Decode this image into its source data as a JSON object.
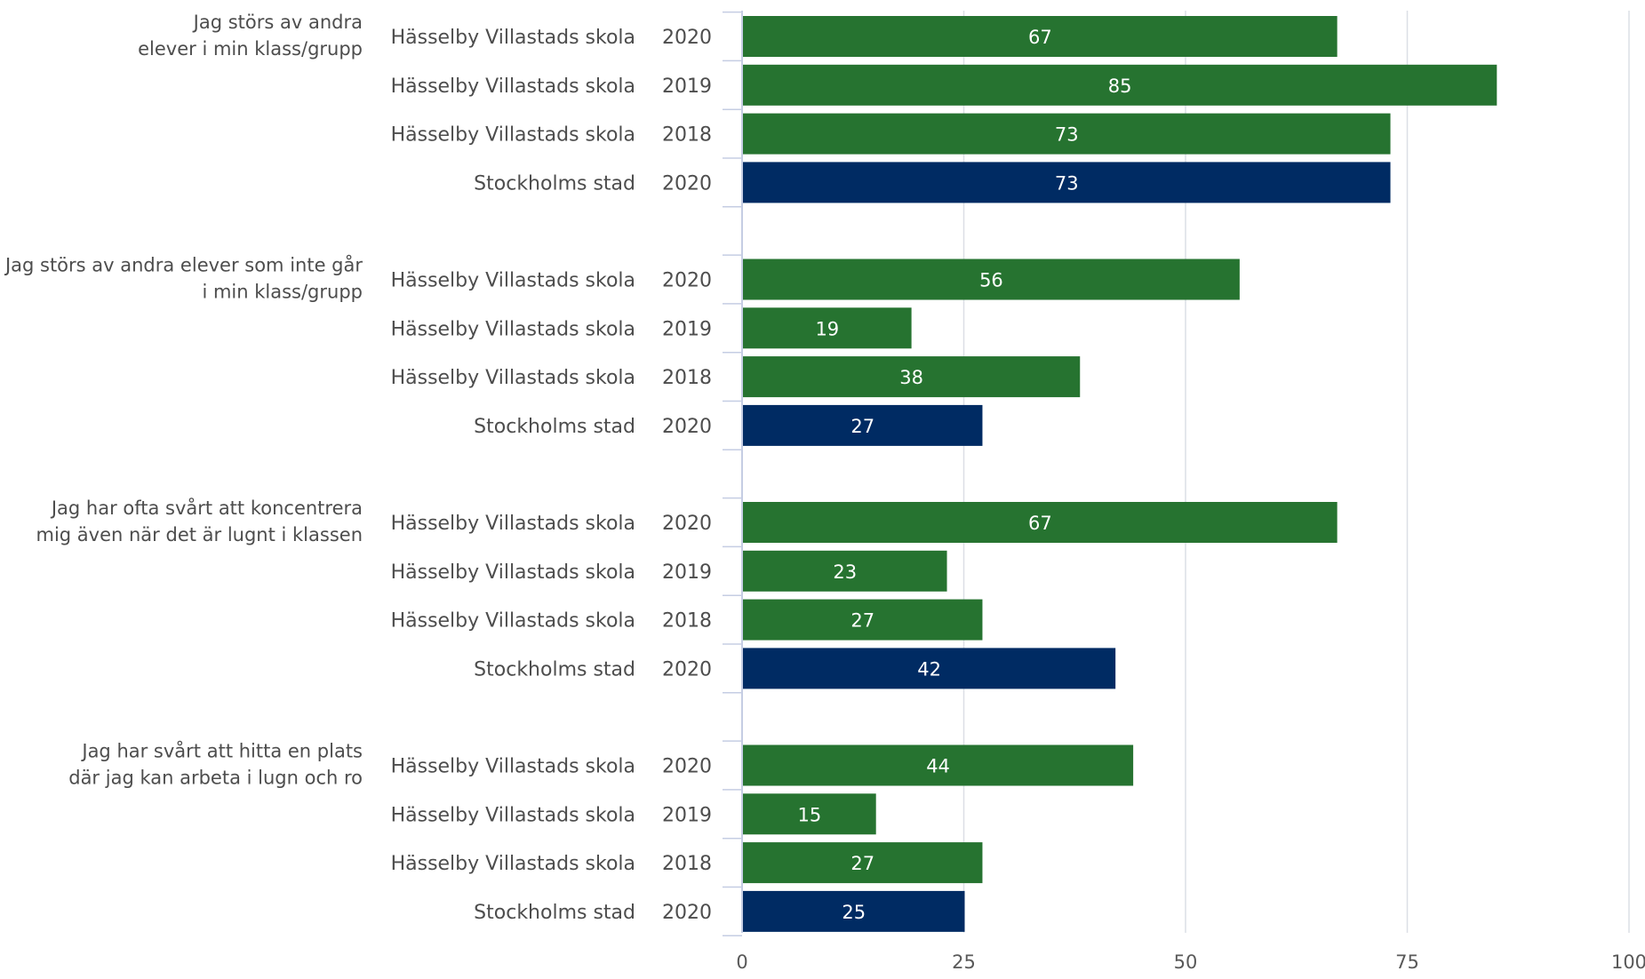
{
  "chart_data": {
    "type": "bar",
    "orientation": "horizontal",
    "xlim": [
      0,
      100
    ],
    "ticks": [
      "0",
      "25",
      "50",
      "75",
      "100"
    ],
    "tick_values": [
      0,
      25,
      50,
      75,
      100
    ],
    "grid": true,
    "colors": {
      "school": "#267330",
      "city": "#002b63",
      "grid": "#dcdfe6",
      "axis": "#c5cde3",
      "text": "#4d4d4d",
      "bar_text": "#ffffff"
    },
    "groups": [
      {
        "label_lines": [
          "Jag störs av andra",
          "elever i min klass/grupp"
        ],
        "rows": [
          {
            "name": "Hässelby Villastads skola",
            "year": "2020",
            "value": 67,
            "series": "school"
          },
          {
            "name": "Hässelby Villastads skola",
            "year": "2019",
            "value": 85,
            "series": "school"
          },
          {
            "name": "Hässelby Villastads skola",
            "year": "2018",
            "value": 73,
            "series": "school"
          },
          {
            "name": "Stockholms stad",
            "year": "2020",
            "value": 73,
            "series": "city"
          }
        ]
      },
      {
        "label_lines": [
          "Jag störs av andra elever som inte går",
          "i min klass/grupp"
        ],
        "rows": [
          {
            "name": "Hässelby Villastads skola",
            "year": "2020",
            "value": 56,
            "series": "school"
          },
          {
            "name": "Hässelby Villastads skola",
            "year": "2019",
            "value": 19,
            "series": "school"
          },
          {
            "name": "Hässelby Villastads skola",
            "year": "2018",
            "value": 38,
            "series": "school"
          },
          {
            "name": "Stockholms stad",
            "year": "2020",
            "value": 27,
            "series": "city"
          }
        ]
      },
      {
        "label_lines": [
          "Jag har ofta svårt att koncentrera",
          "mig även när det är lugnt i klassen"
        ],
        "rows": [
          {
            "name": "Hässelby Villastads skola",
            "year": "2020",
            "value": 67,
            "series": "school"
          },
          {
            "name": "Hässelby Villastads skola",
            "year": "2019",
            "value": 23,
            "series": "school"
          },
          {
            "name": "Hässelby Villastads skola",
            "year": "2018",
            "value": 27,
            "series": "school"
          },
          {
            "name": "Stockholms stad",
            "year": "2020",
            "value": 42,
            "series": "city"
          }
        ]
      },
      {
        "label_lines": [
          "Jag har svårt att hitta en plats",
          "där jag kan arbeta i lugn och ro"
        ],
        "rows": [
          {
            "name": "Hässelby Villastads skola",
            "year": "2020",
            "value": 44,
            "series": "school"
          },
          {
            "name": "Hässelby Villastads skola",
            "year": "2019",
            "value": 15,
            "series": "school"
          },
          {
            "name": "Hässelby Villastads skola",
            "year": "2018",
            "value": 27,
            "series": "school"
          },
          {
            "name": "Stockholms stad",
            "year": "2020",
            "value": 25,
            "series": "city"
          }
        ]
      }
    ]
  }
}
